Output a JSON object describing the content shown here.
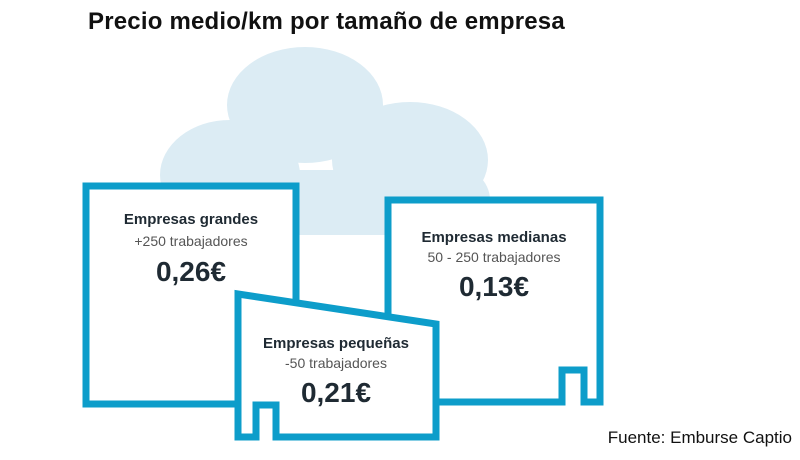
{
  "title": "Precio medio/km por tamaño de empresa",
  "source": "Fuente: Emburse Captio",
  "colors": {
    "accent": "#0d9dca",
    "cloud": "#dcecf4",
    "text": "#1f2a33",
    "subtext": "#555555"
  },
  "icons": [
    "cloud-icon"
  ],
  "chart_data": {
    "type": "bar",
    "title": "Precio medio/km por tamaño de empresa",
    "categories": [
      "Empresas grandes",
      "Empresas medianas",
      "Empresas pequeñas"
    ],
    "subtitles": [
      "+250 trabajadores",
      "50 - 250 trabajadores",
      "-50 trabajadores"
    ],
    "values": [
      0.26,
      0.13,
      0.21
    ],
    "value_labels": [
      "0,26€",
      "0,13€",
      "0,21€"
    ],
    "unit": "€/km"
  }
}
